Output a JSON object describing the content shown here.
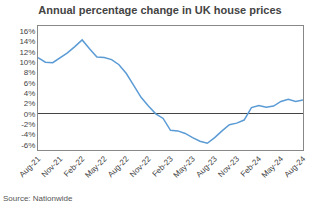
{
  "chart_data": {
    "type": "line",
    "title": "Annual percentage change in UK house prices",
    "annotations": [
      "Source: Nationwide"
    ],
    "color": "#5b9bd5",
    "x": [
      0,
      1,
      2,
      3,
      4,
      5,
      6,
      7,
      8,
      9,
      10,
      11,
      12,
      13,
      14,
      15,
      16,
      17,
      18,
      19,
      20,
      21,
      22,
      23,
      24,
      25,
      26,
      27,
      28,
      29,
      30,
      31,
      32,
      33,
      34,
      35,
      36
    ],
    "values": [
      10.9,
      10.0,
      9.9,
      10.9,
      11.8,
      13.0,
      14.3,
      12.6,
      11.0,
      10.9,
      10.5,
      9.5,
      7.8,
      5.5,
      3.2,
      1.5,
      0.0,
      -0.9,
      -3.2,
      -3.3,
      -3.8,
      -4.6,
      -5.3,
      -5.7,
      -4.6,
      -3.3,
      -2.1,
      -1.8,
      -1.2,
      1.2,
      1.6,
      1.3,
      1.5,
      2.4,
      2.8,
      2.4,
      2.7
    ],
    "xlim": [
      0,
      36
    ],
    "xticks": [
      {
        "value": 0,
        "label": "Aug-21"
      },
      {
        "value": 3,
        "label": "Nov-21"
      },
      {
        "value": 6,
        "label": "Feb-22"
      },
      {
        "value": 9,
        "label": "May-22"
      },
      {
        "value": 12,
        "label": "Aug-22"
      },
      {
        "value": 15,
        "label": "Nov-22"
      },
      {
        "value": 18,
        "label": "Feb-23"
      },
      {
        "value": 21,
        "label": "May-23"
      },
      {
        "value": 24,
        "label": "Aug-23"
      },
      {
        "value": 27,
        "label": "Nov-23"
      },
      {
        "value": 30,
        "label": "Feb-24"
      },
      {
        "value": 33,
        "label": "May-24"
      },
      {
        "value": 36,
        "label": "Aug-24"
      }
    ],
    "ylim": [
      -7,
      17
    ],
    "yticks": [
      {
        "value": -6,
        "label": "-6%"
      },
      {
        "value": -4,
        "label": "-4%"
      },
      {
        "value": -2,
        "label": "-2%"
      },
      {
        "value": 0,
        "label": "0%"
      },
      {
        "value": 2,
        "label": "2%"
      },
      {
        "value": 4,
        "label": "4%"
      },
      {
        "value": 6,
        "label": "6%"
      },
      {
        "value": 8,
        "label": "8%"
      },
      {
        "value": 10,
        "label": "10%"
      },
      {
        "value": 12,
        "label": "12%"
      },
      {
        "value": 14,
        "label": "14%"
      },
      {
        "value": 16,
        "label": "16%"
      }
    ],
    "grid": false
  }
}
